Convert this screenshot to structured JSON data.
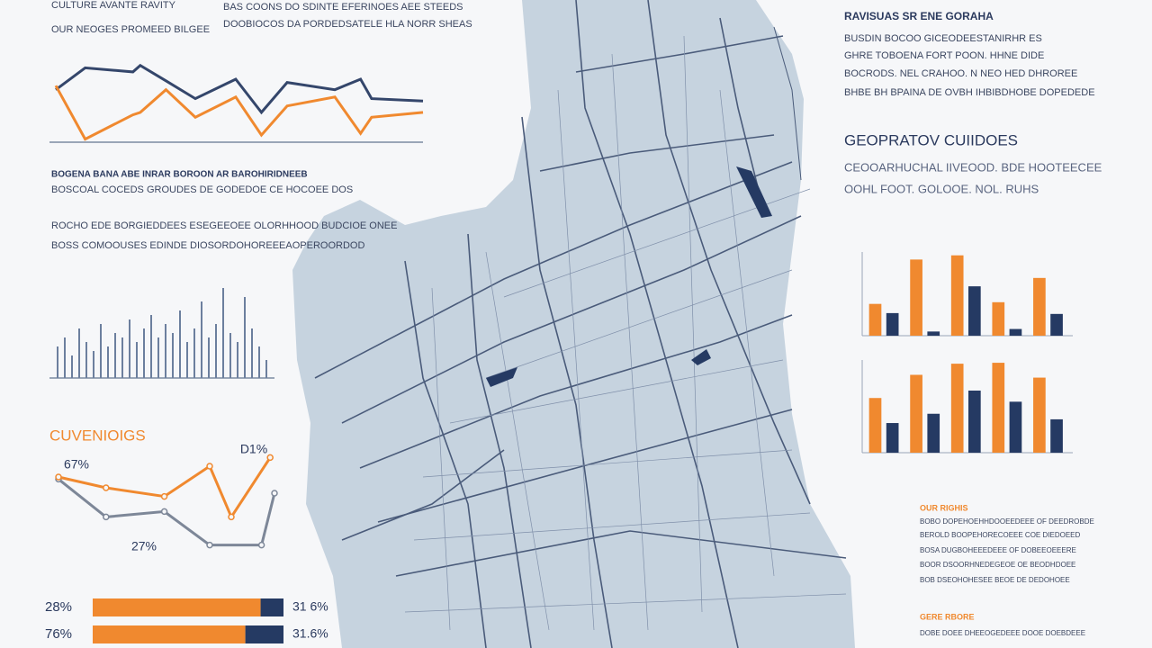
{
  "texts": {
    "top_left": [
      "CULTURE AVANTE RAVITY",
      "OUR NEOGES PROMEED BILGEE"
    ],
    "top_center": [
      "BAS COONS DO SDINTE EFERINOES AEE STEEDS",
      "DOOBIOCOS DA PORDEDSATELE HLA NORR SHEAS"
    ],
    "right_heading": "RAVISUAS SR ENE GORAHA",
    "right_body": [
      "BUSDIN BOCOO GICEODEESTANIRHR ES",
      "GHRE TOBOENA FORT POON. HHNE DIDE",
      "BOCRODS. NEL CRAHOO. N NEO HED DHROREE",
      "BHBE BH BPAINA DE OVBH IHBIBDHOBE DOPEDEDE"
    ],
    "right_subheading": "GEOPRATOV CUIIDOES",
    "right_sub_body": [
      "CEOOARHUCHAL IIVEOOD. BDE HOOTEECEE",
      "OOHL FOOT. GOLOOE. NOL. RUHS"
    ],
    "middle_heading": "BOGENA BANA ABE INRAR BOROON AR BAROHIRIDNEEB",
    "middle_body": [
      "BOSCOAL COCEDS GROUDES DE GODEDOE CE HOCOEE DOS",
      "ROCHO EDE BORGIEDDEES ESEGEEOEE OLORHHOOD BUDCIOE ONEE",
      "BOSS COMOOUSES EDINDE DIOSORDOHOREEEAOPEROORDOD"
    ],
    "notes_heading_1": "OUR RIGHIS",
    "notes_body_1": [
      "BOBO DOPEHOEHHDOOEEDEEE OF DEEDROBDE",
      "BEROLD BOOPEHORECOEEE COE DIEDOEED",
      "BOSA DUGBOHEEEDEEE OF DOBEEOEEERE",
      "BOOR DSOORHNEDEGEOE OE BEODHDOEE",
      "BOB DSEOHOHESEE BEOE DE DEDOHOEE"
    ],
    "notes_heading_2": "GERE RBORE",
    "notes_body_2": [
      "DOBE DOEE DHEEOGEDEEE DOOE DOEBDEEE"
    ]
  },
  "chart_data": [
    {
      "type": "line",
      "x": [
        0,
        8,
        21,
        23,
        30,
        38,
        49,
        56,
        63,
        76,
        83,
        86,
        100
      ],
      "xlim": [
        0,
        100
      ],
      "ylim": [
        0,
        100
      ],
      "series": [
        {
          "color": "#34466b",
          "values": [
            67,
            94,
            89,
            97,
            78,
            56,
            80,
            39,
            76,
            67,
            80,
            56,
            53
          ]
        },
        {
          "color": "#f0892f",
          "values": [
            72,
            6,
            36,
            39,
            67,
            33,
            58,
            11,
            47,
            58,
            13,
            33,
            39
          ]
        }
      ]
    },
    {
      "type": "bar",
      "ylim": [
        0,
        100
      ],
      "series": [
        {
          "color": "#6c7f9e",
          "values": [
            35,
            45,
            25,
            55,
            40,
            30,
            60,
            35,
            50,
            45,
            65,
            40,
            55,
            70,
            45,
            60,
            50,
            75,
            40,
            55,
            85,
            45,
            60,
            100,
            50,
            40,
            90,
            55,
            35,
            20
          ]
        }
      ]
    },
    {
      "type": "line",
      "title": "CUVENIOIGS",
      "annotations": [
        "67%",
        "D1%",
        "27%"
      ],
      "xlim": [
        0,
        100
      ],
      "ylim": [
        0,
        100
      ],
      "markers": true,
      "series": [
        {
          "color": "#7d8798",
          "x": [
            0,
            22,
            49,
            70,
            94,
            100
          ],
          "values": [
            73,
            38,
            43,
            12,
            12,
            60
          ]
        },
        {
          "color": "#f0892f",
          "x": [
            0,
            22,
            49,
            70,
            80,
            98
          ],
          "values": [
            75,
            65,
            57,
            85,
            38,
            93
          ]
        }
      ]
    },
    {
      "type": "barh",
      "xlim": [
        0,
        100
      ],
      "left_labels": [
        "28%",
        "76%"
      ],
      "right_labels": [
        "31 6%",
        "31.6%"
      ],
      "series": [
        {
          "color": "#f0892f",
          "values": [
            88,
            80
          ]
        },
        {
          "color": "#253a63",
          "values": [
            12,
            20
          ]
        }
      ]
    },
    {
      "type": "bar",
      "ylim": [
        0,
        100
      ],
      "series": [
        {
          "color": "#f0892f",
          "values": [
            38,
            91,
            96,
            40,
            69
          ]
        },
        {
          "color": "#253a63",
          "values": [
            27,
            5,
            59,
            8,
            26
          ]
        }
      ]
    },
    {
      "type": "bar",
      "ylim": [
        0,
        100
      ],
      "series": [
        {
          "color": "#f0892f",
          "values": [
            59,
            84,
            96,
            97,
            81
          ]
        },
        {
          "color": "#253a63",
          "values": [
            32,
            42,
            67,
            55,
            36
          ]
        }
      ]
    }
  ]
}
